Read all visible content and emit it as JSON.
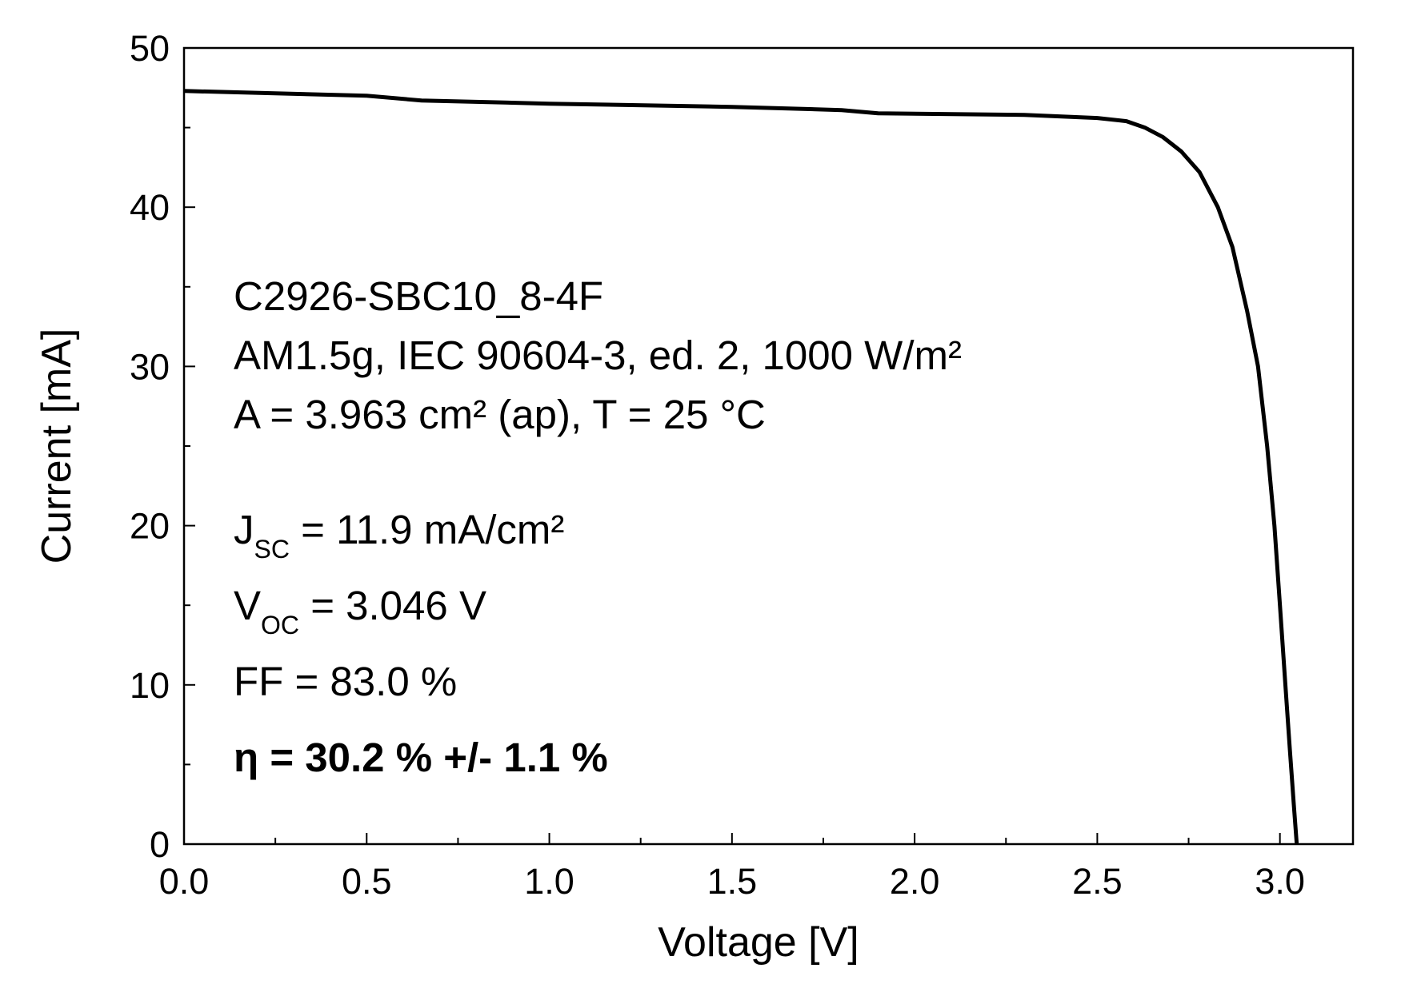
{
  "chart_data": {
    "type": "line",
    "xlabel": "Voltage [V]",
    "ylabel": "Current [mA]",
    "xlim": [
      0,
      3.2
    ],
    "ylim": [
      0,
      50
    ],
    "grid": false,
    "x_ticks": [
      "0.0",
      "0.5",
      "1.0",
      "1.5",
      "2.0",
      "2.5",
      "3.0"
    ],
    "y_ticks": [
      "0",
      "10",
      "20",
      "30",
      "40",
      "50"
    ],
    "series": [
      {
        "color": "#000000",
        "x": [
          0,
          0.5,
          0.65,
          1.0,
          1.5,
          1.8,
          1.9,
          2.3,
          2.5,
          2.58,
          2.63,
          2.68,
          2.73,
          2.78,
          2.83,
          2.87,
          2.91,
          2.94,
          2.965,
          2.985,
          3.0,
          3.015,
          3.027,
          3.038,
          3.046
        ],
        "y": [
          47.3,
          47.0,
          46.7,
          46.5,
          46.3,
          46.1,
          45.9,
          45.8,
          45.6,
          45.4,
          45.0,
          44.4,
          43.5,
          42.2,
          40.0,
          37.5,
          33.5,
          30.0,
          25.0,
          20.0,
          15.0,
          10.0,
          6.0,
          2.5,
          0
        ]
      }
    ],
    "annotations": {
      "line1": "C2926-SBC10_8-4F",
      "line2": "AM1.5g, IEC 90604-3, ed. 2, 1000 W/m²",
      "line3": "A = 3.963 cm² (ap), T = 25 °C",
      "jsc_symbol": "J",
      "jsc_sub": "SC",
      "jsc_value": " = 11.9 mA/cm²",
      "voc_symbol": "V",
      "voc_sub": "OC",
      "voc_value": " = 3.046 V",
      "ff": "FF = 83.0 %",
      "eta": "η = 30.2 % +/- 1.1 %"
    }
  }
}
